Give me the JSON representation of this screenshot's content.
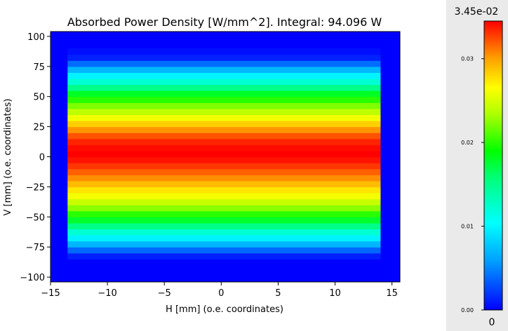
{
  "chart_data": {
    "type": "heatmap",
    "title": "Absorbed Power Density [W/mm^2]. Integral: 94.096 W",
    "xlabel": "H [mm] (o.e. coordinates)",
    "ylabel": "V [mm] (o.e. coordinates)",
    "xlim": [
      -15.0,
      15.7
    ],
    "ylim": [
      -104,
      104
    ],
    "xticks": [
      -15,
      -10,
      -5,
      0,
      5,
      10,
      15
    ],
    "xtick_labels": [
      "−15",
      "−10",
      "−5",
      "0",
      "5",
      "10",
      "15"
    ],
    "yticks": [
      -100,
      -75,
      -50,
      -25,
      0,
      25,
      50,
      75,
      100
    ],
    "ytick_labels": [
      "−100",
      "−75",
      "−50",
      "−25",
      "0",
      "25",
      "50",
      "75",
      "100"
    ],
    "extent_h": [
      -13.5,
      14.0
    ],
    "extent_v": [
      -85,
      90
    ],
    "band_step_v": 5,
    "profile_v": [
      {
        "v": -85,
        "p": 0.0011
      },
      {
        "v": -80,
        "p": 0.0038
      },
      {
        "v": -75,
        "p": 0.0069
      },
      {
        "v": -70,
        "p": 0.0098
      },
      {
        "v": -65,
        "p": 0.0122
      },
      {
        "v": -60,
        "p": 0.0152
      },
      {
        "v": -55,
        "p": 0.0178
      },
      {
        "v": -50,
        "p": 0.02
      },
      {
        "v": -45,
        "p": 0.0225
      },
      {
        "v": -40,
        "p": 0.0244
      },
      {
        "v": -35,
        "p": 0.0262
      },
      {
        "v": -30,
        "p": 0.0275
      },
      {
        "v": -25,
        "p": 0.029
      },
      {
        "v": -20,
        "p": 0.0305
      },
      {
        "v": -15,
        "p": 0.0318
      },
      {
        "v": -10,
        "p": 0.033
      },
      {
        "v": -5,
        "p": 0.034
      },
      {
        "v": 0,
        "p": 0.0345
      },
      {
        "v": 5,
        "p": 0.0342
      },
      {
        "v": 10,
        "p": 0.0335
      },
      {
        "v": 15,
        "p": 0.0322
      },
      {
        "v": 20,
        "p": 0.0303
      },
      {
        "v": 25,
        "p": 0.0283
      },
      {
        "v": 30,
        "p": 0.026
      },
      {
        "v": 35,
        "p": 0.024
      },
      {
        "v": 40,
        "p": 0.0222
      },
      {
        "v": 45,
        "p": 0.02
      },
      {
        "v": 50,
        "p": 0.018
      },
      {
        "v": 55,
        "p": 0.0152
      },
      {
        "v": 60,
        "p": 0.0122
      },
      {
        "v": 65,
        "p": 0.0098
      },
      {
        "v": 70,
        "p": 0.007
      },
      {
        "v": 75,
        "p": 0.004
      },
      {
        "v": 80,
        "p": 0.0012
      },
      {
        "v": 85,
        "p": 0.0005
      }
    ],
    "colormap": "gist_rainbow_r (blue to red)",
    "background_color": "#0000ff",
    "colorbar": {
      "max_label": "3.45e-02",
      "min_label": "0",
      "vmin": 0,
      "vmax": 0.0345,
      "ticks": [
        0.0,
        0.01,
        0.02,
        0.03
      ],
      "tick_labels": [
        "0.00",
        "0.01",
        "0.02",
        "0.03"
      ]
    },
    "grid": false,
    "legend": "none"
  }
}
